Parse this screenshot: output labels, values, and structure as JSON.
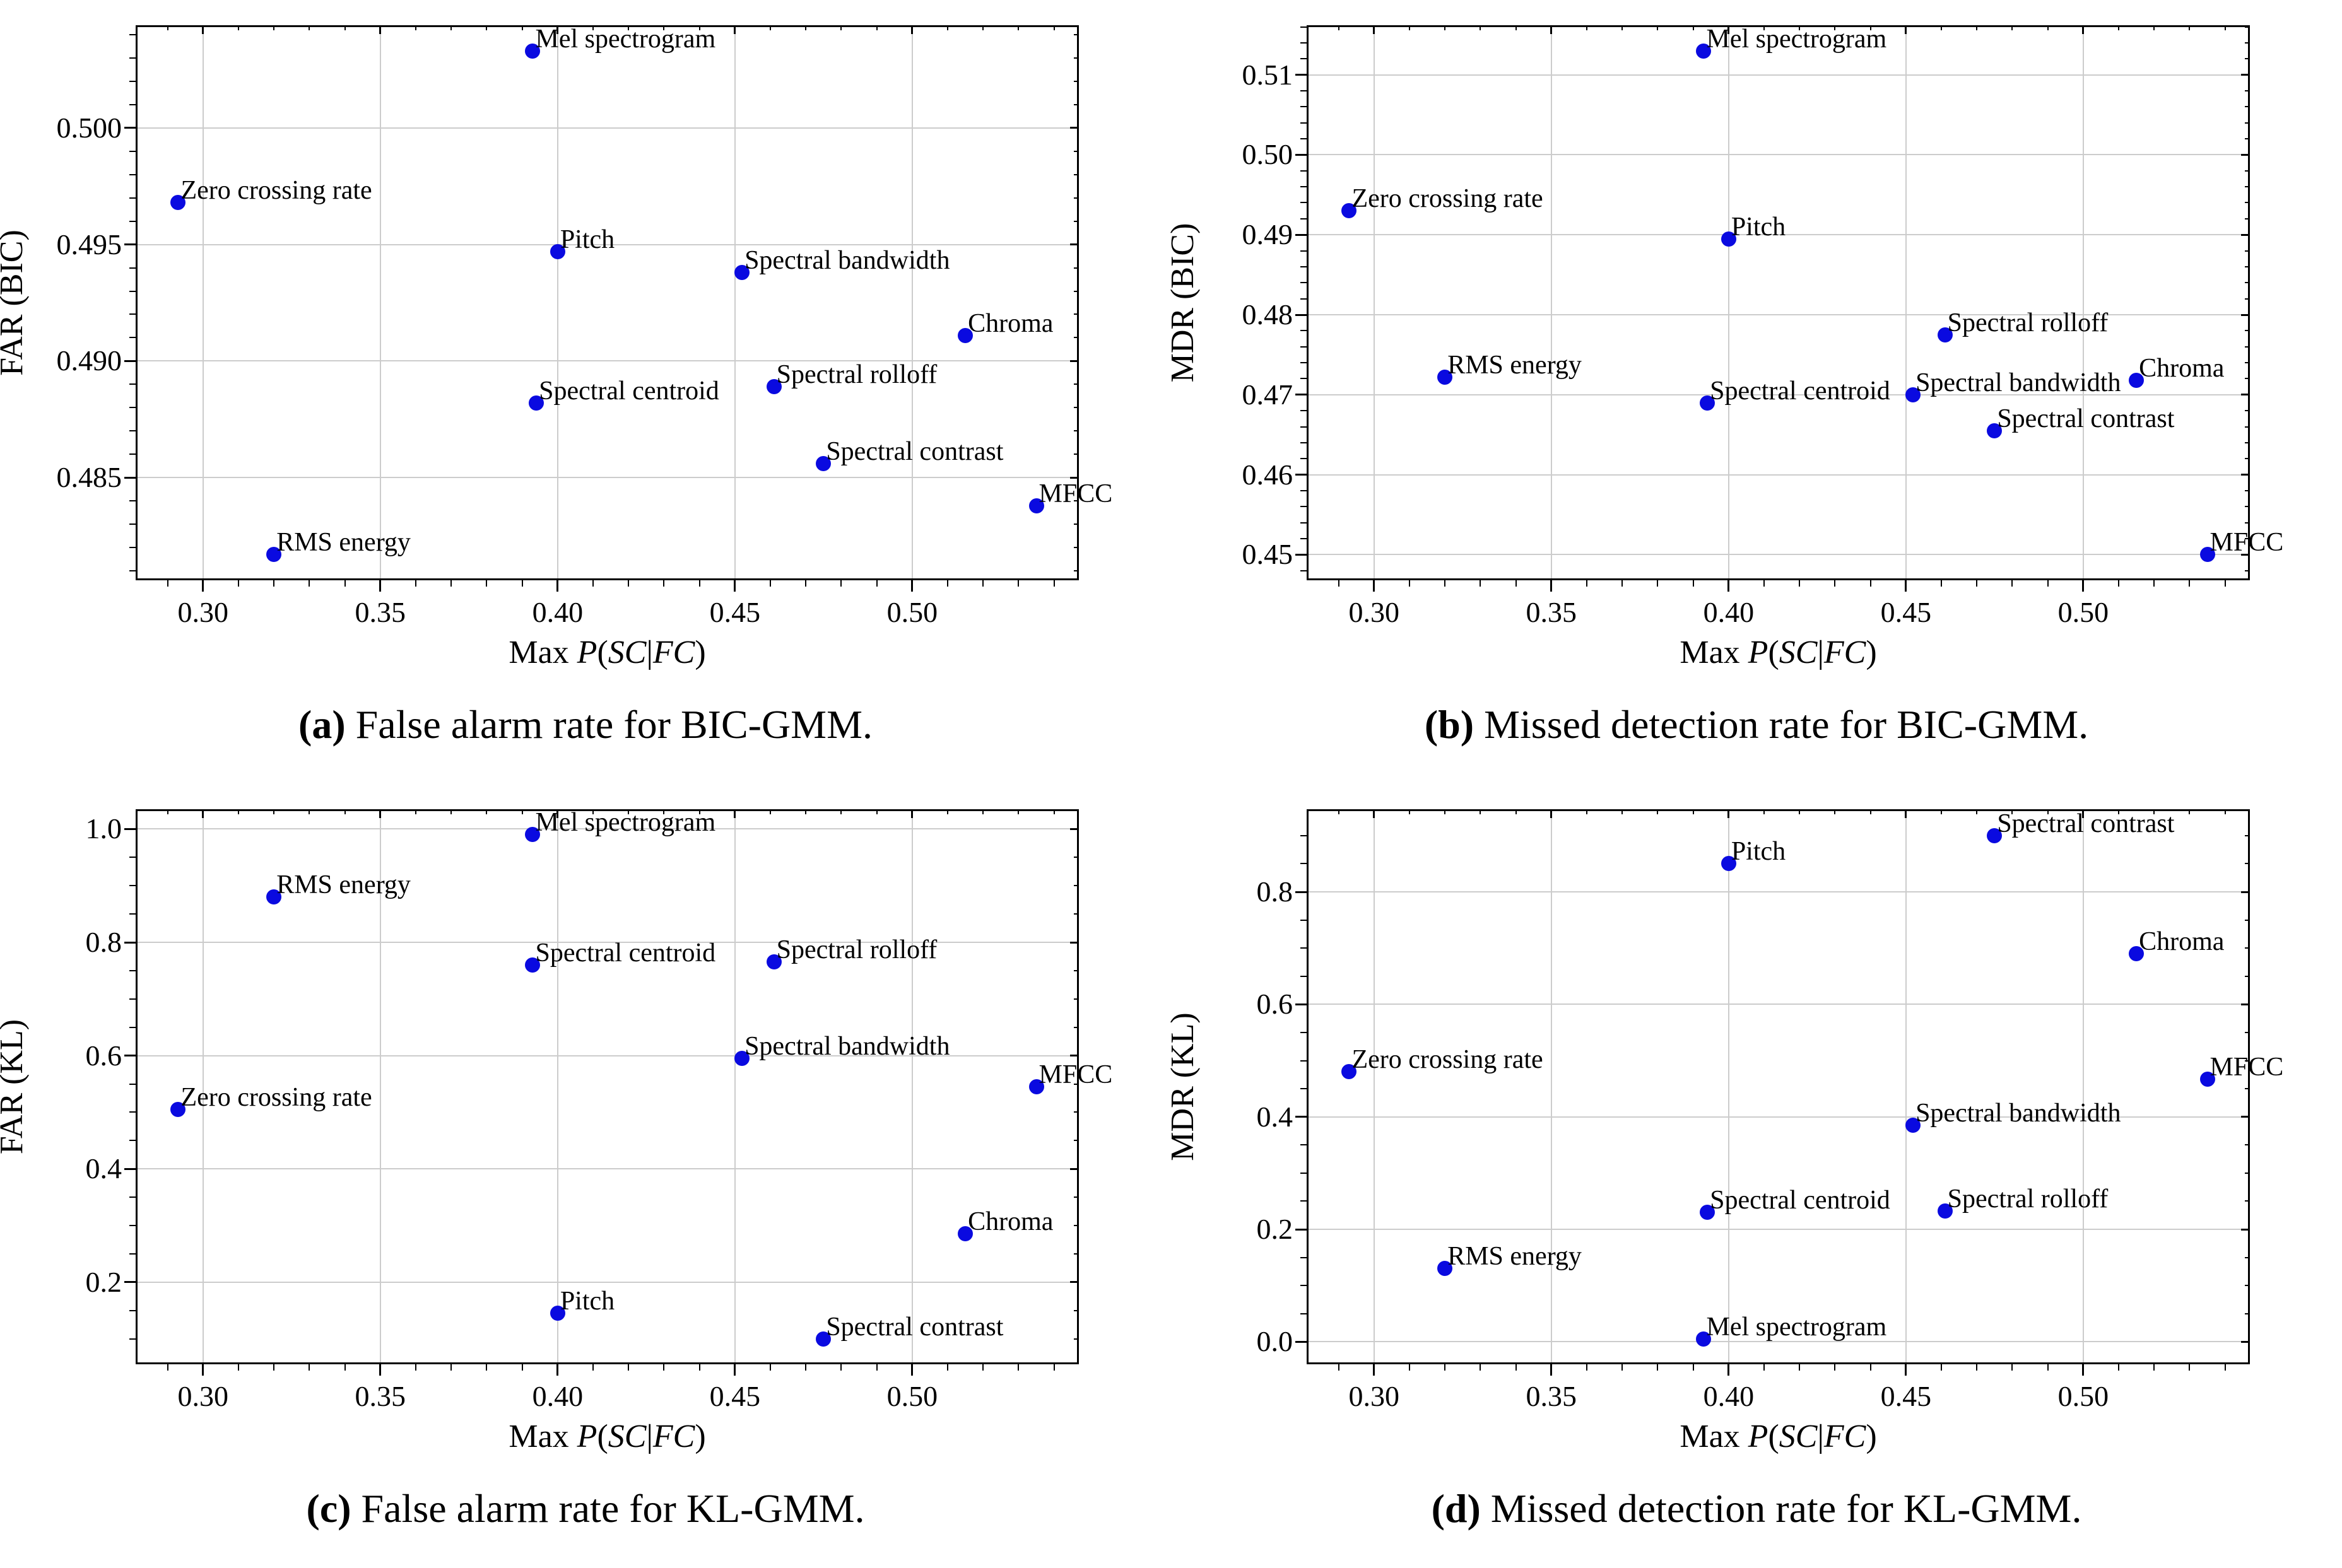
{
  "xlabel_parts": {
    "prefix": "Max ",
    "p": "P",
    "open": "(",
    "sc": "SC",
    "bar": "|",
    "fc": "FC",
    "close": ")"
  },
  "style": {
    "dot_color": "#0a0ae0",
    "grid_color": "#cccccc",
    "axis_color": "#000000",
    "label_color": "#000000",
    "background": "#ffffff",
    "legend": "none",
    "grid": "on"
  },
  "chart_data": [
    {
      "id": "a",
      "type": "scatter",
      "ylabel": "FAR (BIC)",
      "xlabel_text": "Max P(SC|FC)",
      "caption": {
        "label": "(a)",
        "text": " False alarm rate for BIC-GMM."
      },
      "xlim": [
        0.281,
        0.547
      ],
      "ylim": [
        0.4806,
        0.5044
      ],
      "xticks": [
        "0.30",
        "0.35",
        "0.40",
        "0.45",
        "0.50"
      ],
      "yticks": [
        "0.485",
        "0.490",
        "0.495",
        "0.500"
      ],
      "x_minor_step": 0.01,
      "y_minor_step": 0.001,
      "points": [
        {
          "label": "Mel spectrogram",
          "x": 0.393,
          "y": 0.5033
        },
        {
          "label": "Zero crossing rate",
          "x": 0.293,
          "y": 0.4968
        },
        {
          "label": "Pitch",
          "x": 0.4,
          "y": 0.4947
        },
        {
          "label": "Spectral bandwidth",
          "x": 0.452,
          "y": 0.4938
        },
        {
          "label": "Chroma",
          "x": 0.515,
          "y": 0.4911
        },
        {
          "label": "Spectral rolloff",
          "x": 0.461,
          "y": 0.4889
        },
        {
          "label": "Spectral centroid",
          "x": 0.394,
          "y": 0.4882
        },
        {
          "label": "Spectral contrast",
          "x": 0.475,
          "y": 0.4856
        },
        {
          "label": "MFCC",
          "x": 0.535,
          "y": 0.4838
        },
        {
          "label": "RMS energy",
          "x": 0.32,
          "y": 0.4817
        }
      ]
    },
    {
      "id": "b",
      "type": "scatter",
      "ylabel": "MDR (BIC)",
      "xlabel_text": "Max P(SC|FC)",
      "caption": {
        "label": "(b)",
        "text": " Missed detection rate for BIC-GMM."
      },
      "xlim": [
        0.281,
        0.547
      ],
      "ylim": [
        0.4468,
        0.5162
      ],
      "xticks": [
        "0.30",
        "0.35",
        "0.40",
        "0.45",
        "0.50"
      ],
      "yticks": [
        "0.45",
        "0.46",
        "0.47",
        "0.48",
        "0.49",
        "0.50",
        "0.51"
      ],
      "x_minor_step": 0.01,
      "y_minor_step": 0.002,
      "points": [
        {
          "label": "Mel spectrogram",
          "x": 0.393,
          "y": 0.513
        },
        {
          "label": "Zero crossing rate",
          "x": 0.293,
          "y": 0.493
        },
        {
          "label": "Pitch",
          "x": 0.4,
          "y": 0.4895
        },
        {
          "label": "Spectral rolloff",
          "x": 0.461,
          "y": 0.4775
        },
        {
          "label": "RMS energy",
          "x": 0.32,
          "y": 0.4722
        },
        {
          "label": "Chroma",
          "x": 0.515,
          "y": 0.4718
        },
        {
          "label": "Spectral bandwidth",
          "x": 0.452,
          "y": 0.47
        },
        {
          "label": "Spectral centroid",
          "x": 0.394,
          "y": 0.469
        },
        {
          "label": "Spectral contrast",
          "x": 0.475,
          "y": 0.4655
        },
        {
          "label": "MFCC",
          "x": 0.535,
          "y": 0.45
        }
      ]
    },
    {
      "id": "c",
      "type": "scatter",
      "ylabel": "FAR (KL)",
      "xlabel_text": "Max P(SC|FC)",
      "caption": {
        "label": "(c)",
        "text": " False alarm rate for KL-GMM."
      },
      "xlim": [
        0.281,
        0.547
      ],
      "ylim": [
        0.055,
        1.035
      ],
      "xticks": [
        "0.30",
        "0.35",
        "0.40",
        "0.45",
        "0.50"
      ],
      "yticks": [
        "0.2",
        "0.4",
        "0.6",
        "0.8",
        "1.0"
      ],
      "x_minor_step": 0.01,
      "y_minor_step": 0.05,
      "points": [
        {
          "label": "Mel spectrogram",
          "x": 0.393,
          "y": 0.99
        },
        {
          "label": "RMS energy",
          "x": 0.32,
          "y": 0.88
        },
        {
          "label": "Spectral rolloff",
          "x": 0.461,
          "y": 0.765
        },
        {
          "label": "Spectral centroid",
          "x": 0.393,
          "y": 0.76
        },
        {
          "label": "Spectral bandwidth",
          "x": 0.452,
          "y": 0.595
        },
        {
          "label": "MFCC",
          "x": 0.535,
          "y": 0.545
        },
        {
          "label": "Zero crossing rate",
          "x": 0.293,
          "y": 0.505
        },
        {
          "label": "Chroma",
          "x": 0.515,
          "y": 0.285
        },
        {
          "label": "Pitch",
          "x": 0.4,
          "y": 0.145
        },
        {
          "label": "Spectral contrast",
          "x": 0.475,
          "y": 0.1
        }
      ]
    },
    {
      "id": "d",
      "type": "scatter",
      "ylabel": "MDR (KL)",
      "xlabel_text": "Max P(SC|FC)",
      "caption": {
        "label": "(d)",
        "text": " Missed detection rate for KL-GMM."
      },
      "xlim": [
        0.281,
        0.547
      ],
      "ylim": [
        -0.04,
        0.947
      ],
      "xticks": [
        "0.30",
        "0.35",
        "0.40",
        "0.45",
        "0.50"
      ],
      "yticks": [
        "0.0",
        "0.2",
        "0.4",
        "0.6",
        "0.8"
      ],
      "x_minor_step": 0.01,
      "y_minor_step": 0.05,
      "points": [
        {
          "label": "Spectral contrast",
          "x": 0.475,
          "y": 0.9
        },
        {
          "label": "Pitch",
          "x": 0.4,
          "y": 0.85
        },
        {
          "label": "Chroma",
          "x": 0.515,
          "y": 0.69
        },
        {
          "label": "Zero crossing rate",
          "x": 0.293,
          "y": 0.48
        },
        {
          "label": "MFCC",
          "x": 0.535,
          "y": 0.467
        },
        {
          "label": "Spectral bandwidth",
          "x": 0.452,
          "y": 0.385
        },
        {
          "label": "Spectral rolloff",
          "x": 0.461,
          "y": 0.233
        },
        {
          "label": "Spectral centroid",
          "x": 0.394,
          "y": 0.23
        },
        {
          "label": "RMS energy",
          "x": 0.32,
          "y": 0.13
        },
        {
          "label": "Mel spectrogram",
          "x": 0.393,
          "y": 0.005
        }
      ]
    }
  ]
}
